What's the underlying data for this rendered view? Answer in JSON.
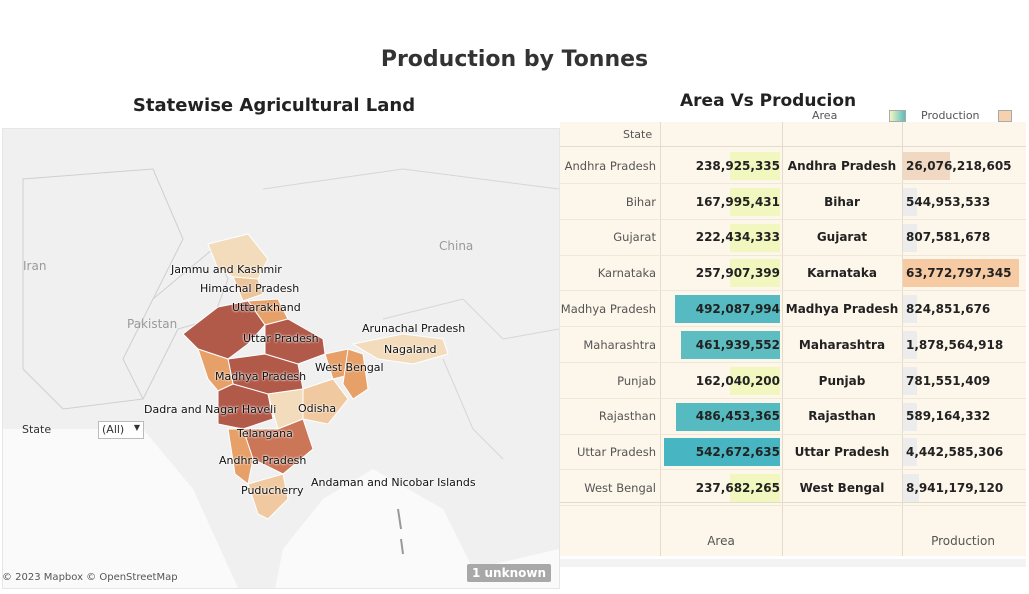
{
  "dashboard": {
    "title": "Production by Tonnes"
  },
  "map": {
    "title": "Statewise Agricultural Land",
    "geo_labels": [
      "Iran",
      "Pakistan",
      "China"
    ],
    "state_labels": [
      "Jammu and Kashmir",
      "Himachal Pradesh",
      "Uttarakhand",
      "Uttar Pradesh",
      "Arunachal Pradesh",
      "Nagaland",
      "West Bengal",
      "Madhya Pradesh",
      "Dadra and Nagar Haveli",
      "Odisha",
      "Telangana",
      "Andhra Pradesh",
      "Puducherry",
      "Andaman and Nicobar Islands"
    ],
    "filter": {
      "label": "State",
      "selected": "(All)"
    },
    "attribution": "© 2023 Mapbox © OpenStreetMap",
    "unknown_badge": "1 unknown",
    "colors": {
      "low": "#f3dcbc",
      "mid": "#e7a068",
      "high": "#b25a4a"
    }
  },
  "table": {
    "title": "Area Vs Producion",
    "legend": {
      "area_label": "Area",
      "production_label": "Production"
    },
    "state_header": "State",
    "footer": {
      "area": "Area",
      "production": "Production"
    },
    "rows": [
      {
        "state": "Andhra Pradesh",
        "area": "238,925,335",
        "production": "26,076,218,605",
        "area_v": 238925335,
        "prod_v": 26076218605
      },
      {
        "state": "Bihar",
        "area": "167,995,431",
        "production": "544,953,533",
        "area_v": 167995431,
        "prod_v": 544953533
      },
      {
        "state": "Gujarat",
        "area": "222,434,333",
        "production": "807,581,678",
        "area_v": 222434333,
        "prod_v": 807581678
      },
      {
        "state": "Karnataka",
        "area": "257,907,399",
        "production": "63,772,797,345",
        "area_v": 257907399,
        "prod_v": 63772797345
      },
      {
        "state": "Madhya Pradesh",
        "area": "492,087,994",
        "production": "824,851,676",
        "area_v": 492087994,
        "prod_v": 824851676
      },
      {
        "state": "Maharashtra",
        "area": "461,939,552",
        "production": "1,878,564,918",
        "area_v": 461939552,
        "prod_v": 1878564918
      },
      {
        "state": "Punjab",
        "area": "162,040,200",
        "production": "781,551,409",
        "area_v": 162040200,
        "prod_v": 781551409
      },
      {
        "state": "Rajasthan",
        "area": "486,453,365",
        "production": "589,164,332",
        "area_v": 486453365,
        "prod_v": 589164332
      },
      {
        "state": "Uttar Pradesh",
        "area": "542,672,635",
        "production": "4,442,585,306",
        "area_v": 542672635,
        "prod_v": 4442585306
      },
      {
        "state": "West Bengal",
        "area": "237,682,265",
        "production": "8,941,179,120",
        "area_v": 237682265,
        "prod_v": 8941179120
      }
    ]
  }
}
